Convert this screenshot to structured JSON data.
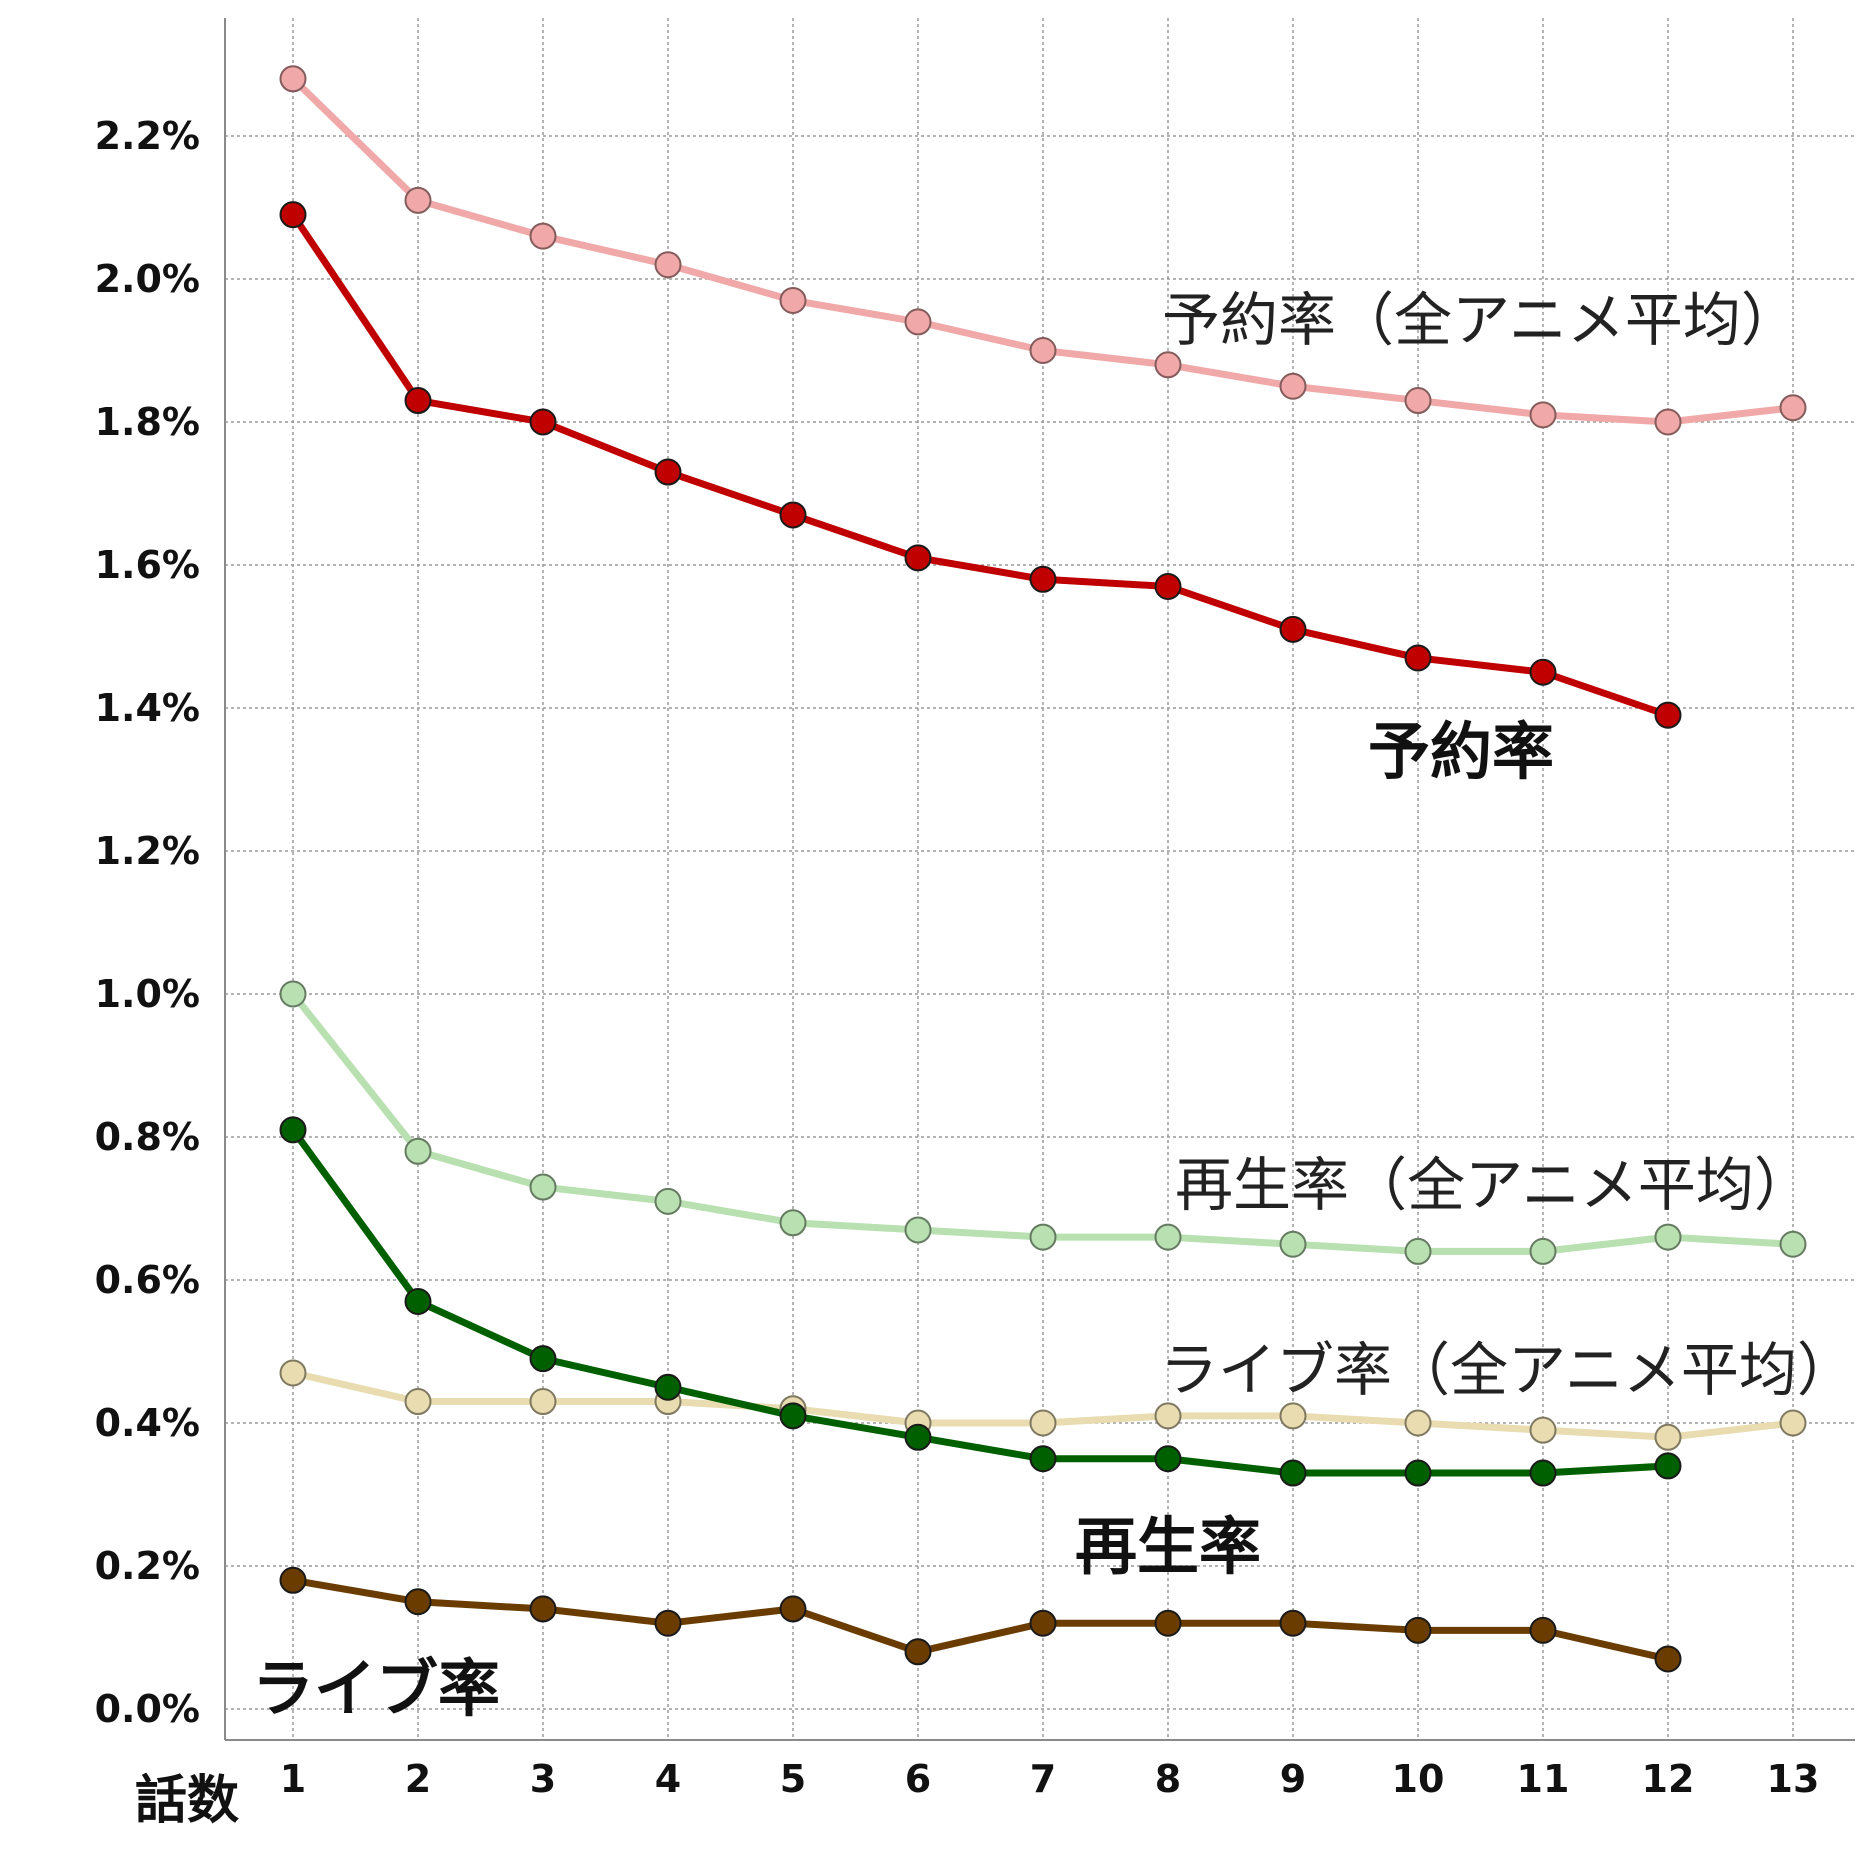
{
  "chart_data": {
    "type": "line",
    "xlabel": "話数",
    "x": [
      1,
      2,
      3,
      4,
      5,
      6,
      7,
      8,
      9,
      10,
      11,
      12,
      13
    ],
    "x_tick_labels": [
      "1",
      "2",
      "3",
      "4",
      "5",
      "6",
      "7",
      "8",
      "9",
      "10",
      "11",
      "12",
      "13"
    ],
    "ylim": [
      0.0,
      2.4
    ],
    "y_tick_labels": [
      "0.0%",
      "0.2%",
      "0.4%",
      "0.6%",
      "0.8%",
      "1.0%",
      "1.2%",
      "1.4%",
      "1.6%",
      "1.8%",
      "2.0%",
      "2.2%"
    ],
    "y_ticks": [
      0.0,
      0.2,
      0.4,
      0.6,
      0.8,
      1.0,
      1.2,
      1.4,
      1.6,
      1.8,
      2.0,
      2.2
    ],
    "grid": true,
    "series": [
      {
        "name": "予約率（全アニメ平均）",
        "color": "#f0a8a8",
        "values": [
          2.28,
          2.11,
          2.06,
          2.02,
          1.97,
          1.94,
          1.9,
          1.88,
          1.85,
          1.83,
          1.81,
          1.8,
          1.82
        ]
      },
      {
        "name": "予約率",
        "color": "#c00000",
        "values": [
          2.09,
          1.83,
          1.8,
          1.73,
          1.67,
          1.61,
          1.58,
          1.57,
          1.51,
          1.47,
          1.45,
          1.39,
          null
        ]
      },
      {
        "name": "再生率（全アニメ平均）",
        "color": "#b8e0b0",
        "values": [
          1.0,
          0.78,
          0.73,
          0.71,
          0.68,
          0.67,
          0.66,
          0.66,
          0.65,
          0.64,
          0.64,
          0.66,
          0.65
        ]
      },
      {
        "name": "ライブ率（全アニメ平均）",
        "color": "#e8dcb0",
        "values": [
          0.47,
          0.43,
          0.43,
          0.43,
          0.42,
          0.4,
          0.4,
          0.41,
          0.41,
          0.4,
          0.39,
          0.38,
          0.4
        ]
      },
      {
        "name": "再生率",
        "color": "#006000",
        "values": [
          0.81,
          0.57,
          0.49,
          0.45,
          0.41,
          0.38,
          0.35,
          0.35,
          0.33,
          0.33,
          0.33,
          0.34,
          null
        ]
      },
      {
        "name": "ライブ率",
        "color": "#6b3c00",
        "values": [
          0.18,
          0.15,
          0.14,
          0.12,
          0.14,
          0.08,
          0.12,
          0.12,
          0.12,
          0.11,
          0.11,
          0.07,
          null
        ]
      }
    ]
  }
}
